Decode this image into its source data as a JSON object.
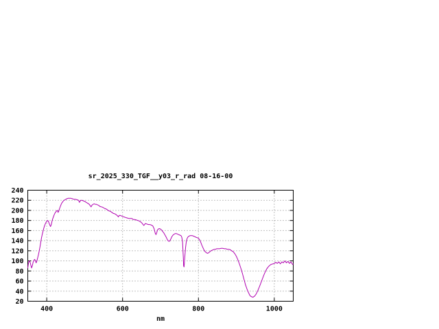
{
  "chart_data": {
    "type": "line",
    "title": "sr_2025_330_TGF__y03_r_rad 08-16-00",
    "xlabel": "nm",
    "ylabel": "",
    "xlim": [
      350,
      1050
    ],
    "ylim": [
      20,
      240
    ],
    "xticks": [
      400,
      600,
      800,
      1000
    ],
    "yticks": [
      20,
      40,
      60,
      80,
      100,
      120,
      140,
      160,
      180,
      200,
      220,
      240
    ],
    "grid": true,
    "legend": "none",
    "line_color": "#b000b0",
    "grid_color": "#808080",
    "border_color": "#000000",
    "series": [
      {
        "name": "sr_2025_330_TGF__y03_r_rad",
        "points": [
          [
            350,
            86
          ],
          [
            352,
            96
          ],
          [
            354,
            100
          ],
          [
            356,
            98
          ],
          [
            358,
            92
          ],
          [
            360,
            86
          ],
          [
            362,
            90
          ],
          [
            364,
            97
          ],
          [
            366,
            101
          ],
          [
            368,
            103
          ],
          [
            370,
            100
          ],
          [
            372,
            96
          ],
          [
            374,
            100
          ],
          [
            376,
            106
          ],
          [
            378,
            112
          ],
          [
            380,
            119
          ],
          [
            382,
            127
          ],
          [
            384,
            136
          ],
          [
            386,
            145
          ],
          [
            388,
            152
          ],
          [
            390,
            158
          ],
          [
            392,
            164
          ],
          [
            394,
            169
          ],
          [
            396,
            173
          ],
          [
            398,
            176
          ],
          [
            400,
            178
          ],
          [
            402,
            180
          ],
          [
            404,
            179
          ],
          [
            406,
            175
          ],
          [
            408,
            171
          ],
          [
            410,
            168
          ],
          [
            412,
            172
          ],
          [
            414,
            179
          ],
          [
            416,
            184
          ],
          [
            418,
            188
          ],
          [
            420,
            192
          ],
          [
            422,
            195
          ],
          [
            424,
            197
          ],
          [
            426,
            199
          ],
          [
            428,
            200
          ],
          [
            430,
            196
          ],
          [
            432,
            199
          ],
          [
            434,
            204
          ],
          [
            436,
            208
          ],
          [
            438,
            212
          ],
          [
            440,
            215
          ],
          [
            442,
            217
          ],
          [
            444,
            219
          ],
          [
            446,
            220
          ],
          [
            448,
            221
          ],
          [
            450,
            222
          ],
          [
            453,
            223
          ],
          [
            456,
            224
          ],
          [
            460,
            224
          ],
          [
            464,
            224
          ],
          [
            468,
            223
          ],
          [
            472,
            222
          ],
          [
            476,
            222
          ],
          [
            480,
            221
          ],
          [
            484,
            220
          ],
          [
            486,
            216
          ],
          [
            488,
            218
          ],
          [
            490,
            220
          ],
          [
            493,
            220
          ],
          [
            496,
            219
          ],
          [
            500,
            218
          ],
          [
            504,
            216
          ],
          [
            508,
            214
          ],
          [
            512,
            212
          ],
          [
            515,
            209
          ],
          [
            517,
            207
          ],
          [
            519,
            210
          ],
          [
            522,
            212
          ],
          [
            525,
            213
          ],
          [
            528,
            212
          ],
          [
            531,
            212
          ],
          [
            534,
            211
          ],
          [
            537,
            210
          ],
          [
            540,
            208
          ],
          [
            544,
            207
          ],
          [
            548,
            206
          ],
          [
            552,
            204
          ],
          [
            556,
            203
          ],
          [
            560,
            201
          ],
          [
            564,
            199
          ],
          [
            568,
            198
          ],
          [
            572,
            196
          ],
          [
            576,
            194
          ],
          [
            580,
            193
          ],
          [
            584,
            191
          ],
          [
            587,
            189
          ],
          [
            589,
            187
          ],
          [
            591,
            190
          ],
          [
            594,
            190
          ],
          [
            597,
            189
          ],
          [
            600,
            188
          ],
          [
            604,
            187
          ],
          [
            608,
            186
          ],
          [
            612,
            185
          ],
          [
            616,
            184
          ],
          [
            620,
            184
          ],
          [
            624,
            184
          ],
          [
            628,
            182
          ],
          [
            632,
            182
          ],
          [
            636,
            181
          ],
          [
            640,
            180
          ],
          [
            644,
            179
          ],
          [
            648,
            177
          ],
          [
            651,
            175
          ],
          [
            654,
            172
          ],
          [
            656,
            170
          ],
          [
            658,
            172
          ],
          [
            660,
            174
          ],
          [
            664,
            173
          ],
          [
            668,
            172
          ],
          [
            672,
            172
          ],
          [
            676,
            171
          ],
          [
            680,
            169
          ],
          [
            683,
            164
          ],
          [
            686,
            155
          ],
          [
            688,
            152
          ],
          [
            690,
            156
          ],
          [
            692,
            161
          ],
          [
            694,
            163
          ],
          [
            697,
            164
          ],
          [
            700,
            163
          ],
          [
            703,
            161
          ],
          [
            706,
            158
          ],
          [
            709,
            155
          ],
          [
            712,
            151
          ],
          [
            715,
            147
          ],
          [
            718,
            142
          ],
          [
            721,
            139
          ],
          [
            724,
            139
          ],
          [
            727,
            143
          ],
          [
            730,
            148
          ],
          [
            733,
            151
          ],
          [
            736,
            153
          ],
          [
            739,
            154
          ],
          [
            742,
            154
          ],
          [
            745,
            153
          ],
          [
            748,
            152
          ],
          [
            751,
            151
          ],
          [
            754,
            150
          ],
          [
            756,
            147
          ],
          [
            758,
            138
          ],
          [
            760,
            108
          ],
          [
            761,
            90
          ],
          [
            762,
            88
          ],
          [
            763,
            96
          ],
          [
            764,
            108
          ],
          [
            766,
            126
          ],
          [
            768,
            138
          ],
          [
            770,
            144
          ],
          [
            772,
            147
          ],
          [
            775,
            149
          ],
          [
            778,
            150
          ],
          [
            781,
            150
          ],
          [
            784,
            150
          ],
          [
            787,
            149
          ],
          [
            790,
            148
          ],
          [
            793,
            147
          ],
          [
            796,
            146
          ],
          [
            800,
            145
          ],
          [
            803,
            142
          ],
          [
            806,
            137
          ],
          [
            809,
            131
          ],
          [
            812,
            126
          ],
          [
            815,
            121
          ],
          [
            818,
            118
          ],
          [
            821,
            116
          ],
          [
            824,
            115
          ],
          [
            827,
            116
          ],
          [
            830,
            118
          ],
          [
            833,
            120
          ],
          [
            836,
            121
          ],
          [
            839,
            122
          ],
          [
            842,
            123
          ],
          [
            845,
            123
          ],
          [
            848,
            124
          ],
          [
            852,
            124
          ],
          [
            856,
            124
          ],
          [
            860,
            125
          ],
          [
            864,
            125
          ],
          [
            868,
            124
          ],
          [
            872,
            124
          ],
          [
            876,
            123
          ],
          [
            880,
            123
          ],
          [
            884,
            122
          ],
          [
            888,
            120
          ],
          [
            892,
            118
          ],
          [
            896,
            114
          ],
          [
            900,
            109
          ],
          [
            904,
            102
          ],
          [
            908,
            94
          ],
          [
            912,
            85
          ],
          [
            916,
            75
          ],
          [
            920,
            64
          ],
          [
            924,
            53
          ],
          [
            928,
            44
          ],
          [
            932,
            37
          ],
          [
            936,
            31
          ],
          [
            940,
            29
          ],
          [
            944,
            28
          ],
          [
            948,
            30
          ],
          [
            952,
            34
          ],
          [
            956,
            40
          ],
          [
            960,
            47
          ],
          [
            964,
            55
          ],
          [
            968,
            63
          ],
          [
            972,
            71
          ],
          [
            976,
            78
          ],
          [
            980,
            84
          ],
          [
            984,
            88
          ],
          [
            988,
            91
          ],
          [
            992,
            93
          ],
          [
            996,
            94
          ],
          [
            1000,
            95
          ],
          [
            1004,
            97
          ],
          [
            1008,
            95
          ],
          [
            1012,
            98
          ],
          [
            1016,
            94
          ],
          [
            1020,
            98
          ],
          [
            1024,
            96
          ],
          [
            1028,
            100
          ],
          [
            1032,
            96
          ],
          [
            1036,
            99
          ],
          [
            1040,
            95
          ],
          [
            1044,
            98
          ],
          [
            1048,
            93
          ],
          [
            1050,
            94
          ]
        ]
      }
    ]
  }
}
